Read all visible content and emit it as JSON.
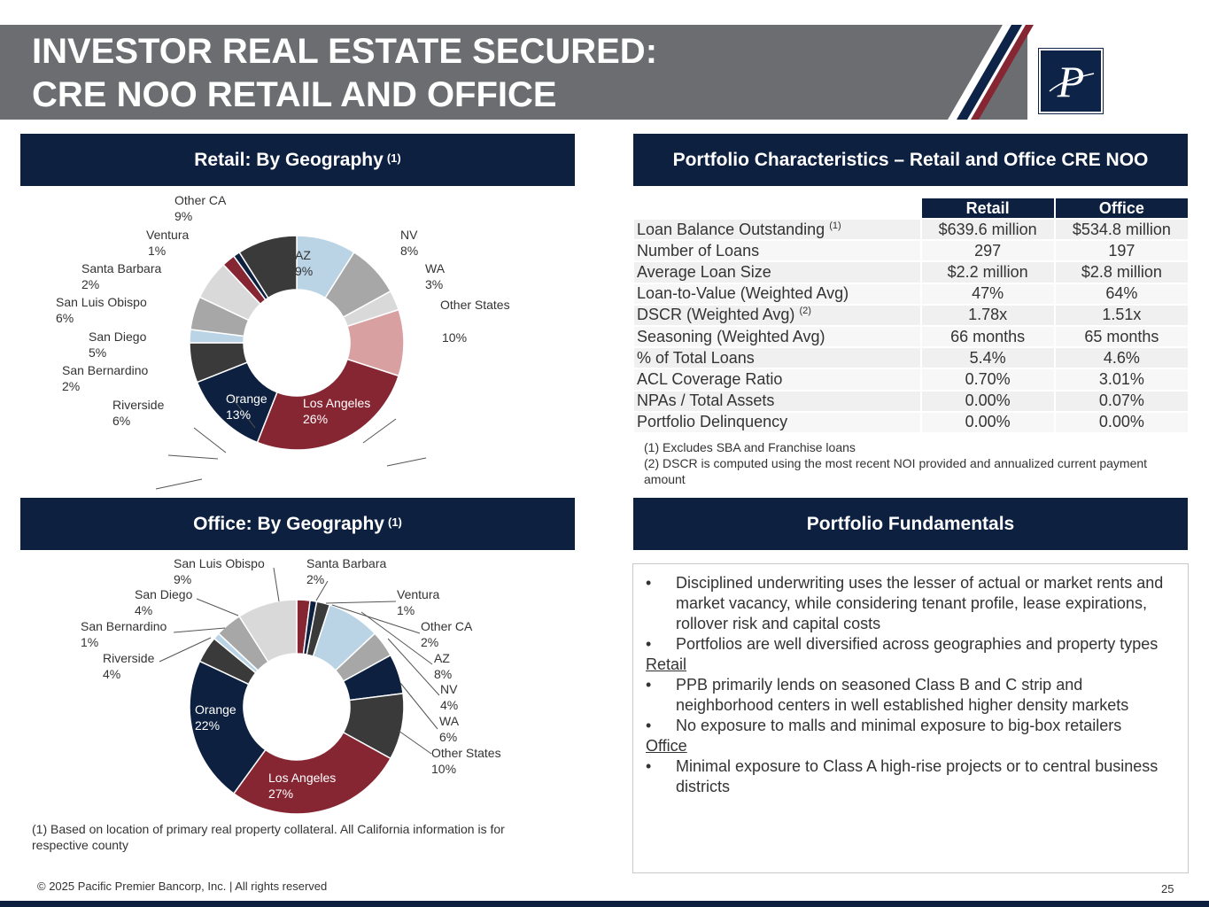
{
  "header": {
    "title_line1": "INVESTOR REAL ESTATE SECURED:",
    "title_line2": "CRE NOO RETAIL AND OFFICE",
    "logo_letter": "P"
  },
  "sections": {
    "retail_geo": "Retail: By Geography",
    "office_geo": "Office: By Geography",
    "footnote_marker": "(1)",
    "portfolio_chars": "Portfolio Characteristics – Retail and Office CRE NOO",
    "portfolio_fund": "Portfolio Fundamentals"
  },
  "chart_data": [
    {
      "type": "pie",
      "title": "Retail: By Geography (1)",
      "categories": [
        "AZ",
        "NV",
        "WA",
        "Other States",
        "Los Angeles",
        "Orange",
        "Riverside",
        "San Bernardino",
        "San Diego",
        "San Luis Obispo",
        "Santa Barbara",
        "Ventura",
        "Other CA"
      ],
      "values": [
        9,
        8,
        3,
        10,
        26,
        13,
        6,
        2,
        5,
        6,
        2,
        1,
        9
      ],
      "value_labels": [
        "9%",
        "8%",
        "3%",
        "10%",
        "26%",
        "13%",
        "6%",
        "2%",
        "5%",
        "6%",
        "2%",
        "1%",
        "9%"
      ],
      "colors": [
        "#bad4e6",
        "#a7a7a7",
        "#d9d9d9",
        "#d9a0a2",
        "#862633",
        "#0d2040",
        "#3a3a3a",
        "#bad4e6",
        "#a7a7a7",
        "#d9d9d9",
        "#862633",
        "#0d2040",
        "#3a3a3a"
      ]
    },
    {
      "type": "pie",
      "title": "Office: By Geography (1)",
      "categories": [
        "Santa Barbara",
        "Ventura",
        "Other CA",
        "AZ",
        "NV",
        "WA",
        "Other States",
        "Los Angeles",
        "Orange",
        "Riverside",
        "San Bernardino",
        "San Diego",
        "San Luis Obispo"
      ],
      "values": [
        2,
        1,
        2,
        8,
        4,
        6,
        10,
        27,
        22,
        4,
        1,
        4,
        9
      ],
      "value_labels": [
        "2%",
        "1%",
        "2%",
        "8%",
        "4%",
        "6%",
        "10%",
        "27%",
        "22%",
        "4%",
        "1%",
        "4%",
        "9%"
      ],
      "colors": [
        "#862633",
        "#0d2040",
        "#3a3a3a",
        "#bad4e6",
        "#a7a7a7",
        "#0d2040",
        "#3a3a3a",
        "#862633",
        "#0d2040",
        "#3a3a3a",
        "#bad4e6",
        "#a7a7a7",
        "#d9d9d9"
      ]
    }
  ],
  "table": {
    "columns": [
      "Retail",
      "Office"
    ],
    "rows": [
      {
        "metric": "Loan Balance Outstanding",
        "sup": "(1)",
        "retail": "$639.6 million",
        "office": "$534.8 million"
      },
      {
        "metric": "Number of Loans",
        "sup": "",
        "retail": "297",
        "office": "197"
      },
      {
        "metric": "Average Loan Size",
        "sup": "",
        "retail": "$2.2 million",
        "office": "$2.8 million"
      },
      {
        "metric": "Loan-to-Value (Weighted Avg)",
        "sup": "",
        "retail": "47%",
        "office": "64%"
      },
      {
        "metric": "DSCR (Weighted Avg)",
        "sup": "(2)",
        "retail": "1.78x",
        "office": "1.51x"
      },
      {
        "metric": "Seasoning (Weighted Avg)",
        "sup": "",
        "retail": "66 months",
        "office": "65 months"
      },
      {
        "metric": "% of Total Loans",
        "sup": "",
        "retail": "5.4%",
        "office": "4.6%"
      },
      {
        "metric": "ACL Coverage Ratio",
        "sup": "",
        "retail": "0.70%",
        "office": "3.01%"
      },
      {
        "metric": "NPAs / Total Assets",
        "sup": "",
        "retail": "0.00%",
        "office": "0.07%"
      },
      {
        "metric": "Portfolio Delinquency",
        "sup": "",
        "retail": "0.00%",
        "office": "0.00%"
      }
    ]
  },
  "table_notes": {
    "note1": "(1) Excludes SBA and Franchise loans",
    "note2": "(2) DSCR is computed using the most recent NOI provided and annualized current payment amount"
  },
  "fundamentals": {
    "bullet_char": "•",
    "general": [
      "Disciplined underwriting uses the lesser of actual or market rents and market vacancy, while considering tenant profile, lease expirations, rollover risk and capital costs",
      "Portfolios are well diversified across geographies and property types"
    ],
    "retail_heading": "Retail",
    "retail": [
      "PPB primarily lends on seasoned Class B and C strip and neighborhood centers in well established higher density markets",
      "No exposure to malls and minimal exposure to big-box retailers"
    ],
    "office_heading": "Office",
    "office": [
      "Minimal exposure to Class A high-rise projects or to central business districts"
    ]
  },
  "footnote": "(1) Based on location of primary real property collateral. All California information is for respective county",
  "footer": {
    "copyright": "© 2025 Pacific Premier Bancorp, Inc. | All rights reserved",
    "page": "25"
  }
}
